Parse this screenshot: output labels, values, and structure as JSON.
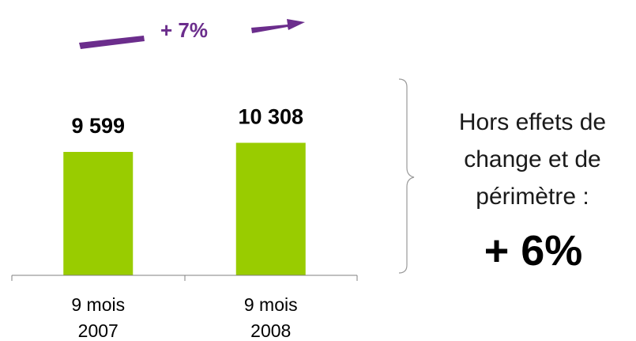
{
  "chart_data": {
    "type": "bar",
    "categories": [
      {
        "line1": "9 mois",
        "line2": "2007"
      },
      {
        "line1": "9 mois",
        "line2": "2008"
      }
    ],
    "values": [
      9599,
      10308
    ],
    "value_labels": [
      "9 599",
      "10 308"
    ],
    "bar_color": "#99cc00",
    "title": "",
    "xlabel": "",
    "ylabel": "",
    "growth": {
      "label": "+ 7%",
      "color": "#6b2d8c"
    }
  },
  "note": {
    "text": "Hors effets de\nchange et de\npérimètre :",
    "value": "+ 6%"
  }
}
